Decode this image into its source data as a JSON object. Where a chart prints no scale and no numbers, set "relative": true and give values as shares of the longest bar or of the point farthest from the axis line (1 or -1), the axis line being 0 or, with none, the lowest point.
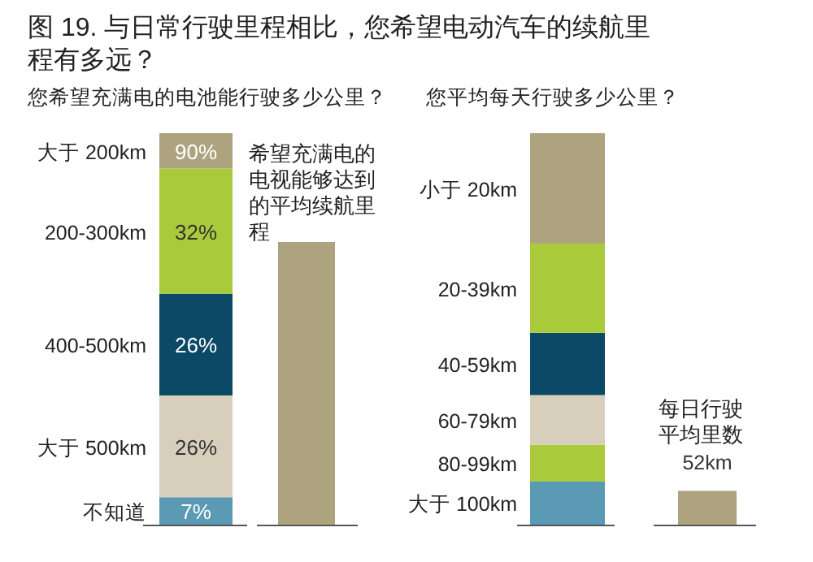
{
  "chart_data": [
    {
      "type": "bar",
      "title": "图 19. 与日常行驶里程相比，您希望电动汽车的续航里程有多远？",
      "subtitle": "您希望充满电的电池能行驶多少公里？",
      "stacked": true,
      "legend": false,
      "categories": [
        null
      ],
      "series": [
        {
          "name": "不知道",
          "color": "#5a9ab5",
          "values": [
            7
          ],
          "value_labels": [
            "7%"
          ]
        },
        {
          "name": "大于 500km",
          "color": "#d7cebc",
          "values": [
            26
          ],
          "value_labels": [
            "26%"
          ]
        },
        {
          "name": "400-500km",
          "color": "#0b4966",
          "values": [
            26
          ],
          "value_labels": [
            "26%"
          ]
        },
        {
          "name": "200-300km",
          "color": "#a9cb3b",
          "values": [
            32
          ],
          "value_labels": [
            "32%"
          ]
        },
        {
          "name": "大于 200km",
          "color": "#ada47f",
          "values": [
            9
          ]
        }
      ],
      "annotations": [
        "90%"
      ]
    },
    {
      "type": "bar",
      "relative": true,
      "categories": [
        "希望充满电的电视能够达到的平均续航里程"
      ],
      "values": [
        1
      ],
      "color": "#ada47f"
    },
    {
      "type": "bar",
      "title": "您平均每天行驶多少公里？",
      "stacked": true,
      "relative": true,
      "legend": false,
      "categories": [
        null
      ],
      "series": [
        {
          "name": "大于 100km",
          "color": "#5a9ab5",
          "values": [
            0.11
          ]
        },
        {
          "name": "80-99km",
          "color": "#a9cb3b",
          "values": [
            0.094
          ]
        },
        {
          "name": "60-79km",
          "color": "#d7cebc",
          "values": [
            0.127
          ]
        },
        {
          "name": "40-59km",
          "color": "#0b4966",
          "values": [
            0.159
          ]
        },
        {
          "name": "20-39km",
          "color": "#a9cb3b",
          "values": [
            0.228
          ]
        },
        {
          "name": "小于 20km",
          "color": "#ada47f",
          "values": [
            0.282
          ]
        }
      ]
    },
    {
      "type": "bar",
      "categories": [
        "每日行驶平均里数"
      ],
      "values": [
        52
      ],
      "value_labels": [
        "52km"
      ],
      "color": "#ada47f"
    }
  ]
}
